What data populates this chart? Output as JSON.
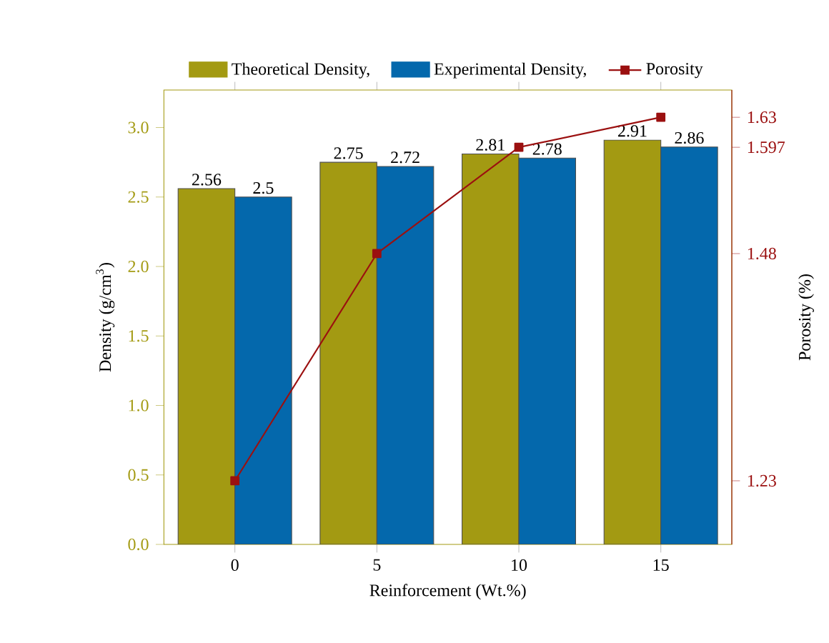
{
  "chart_data": {
    "type": "bar",
    "xlabel": "Reinforcement (Wt.%)",
    "ylabel": "Density (g/cm$^{3}$)",
    "y2label": "Porosity (%)",
    "categories": [
      "0",
      "5",
      "10",
      "15"
    ],
    "series": [
      {
        "name": "Theoretical Density,",
        "color": "#a39a12",
        "values": [
          2.56,
          2.75,
          2.81,
          2.91
        ],
        "value_labels": [
          "2.56",
          "2.75",
          "2.81",
          "2.91"
        ]
      },
      {
        "name": "Experimental Density,",
        "color": "#0468ac",
        "values": [
          2.5,
          2.72,
          2.78,
          2.86
        ],
        "value_labels": [
          "2.5",
          "2.72",
          "2.78",
          "2.86"
        ]
      },
      {
        "name": "Porosity",
        "type": "line",
        "axis": "y2",
        "color": "#9b1010",
        "values": [
          1.23,
          1.48,
          1.597,
          1.63
        ],
        "marker": "square",
        "line_style": "solid"
      }
    ],
    "ylim": [
      0,
      3.27
    ],
    "yticks": [
      {
        "value": 0,
        "label": "0.0"
      },
      0.5,
      {
        "value": 1,
        "label": "1.0"
      },
      1.5,
      {
        "value": 2,
        "label": "2.0"
      },
      2.5,
      {
        "value": 3,
        "label": "3.0"
      }
    ],
    "y2lim": [
      1.16,
      1.66
    ],
    "y2ticks": [
      1.23,
      1.48,
      1.597,
      1.63
    ],
    "legend": "top",
    "grid": false
  }
}
